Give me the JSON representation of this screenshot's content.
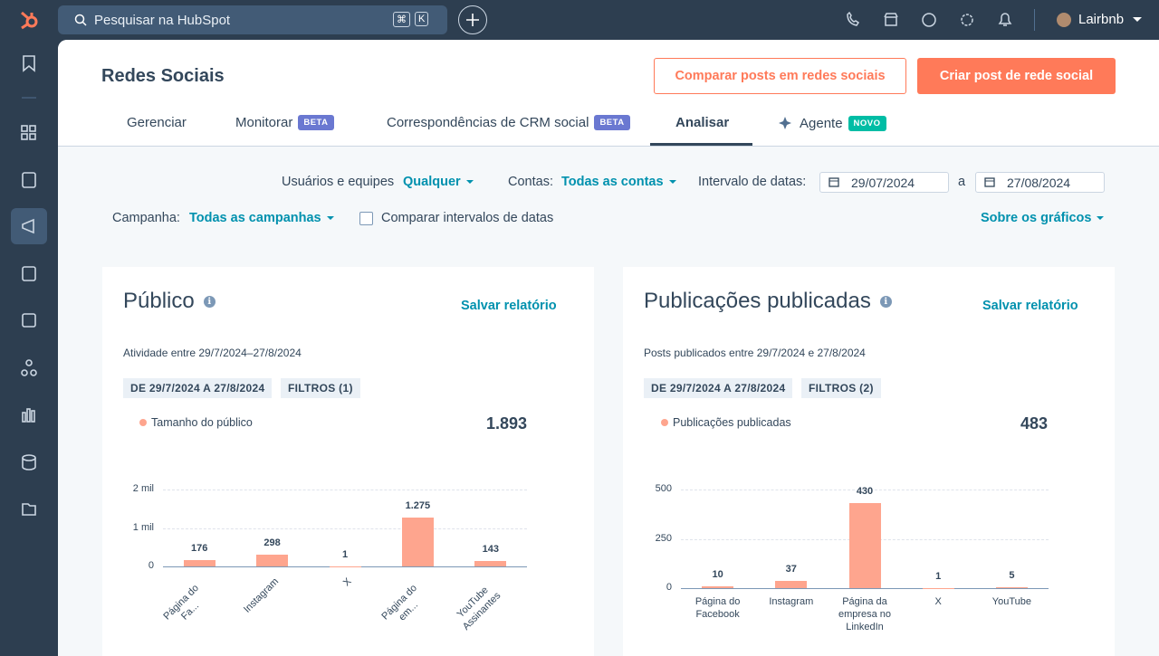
{
  "topbar": {
    "search": "Pesquisar na HubSpot",
    "shortcut": [
      "⌘",
      "K"
    ],
    "user": "Lairbnb"
  },
  "header": {
    "title": "Redes Sociais",
    "buttons": [
      "Comparar posts em redes sociais",
      "Criar post de rede social"
    ]
  },
  "tabs": [
    {
      "label": "Gerenciar"
    },
    {
      "label": "Monitorar",
      "badge": "BETA"
    },
    {
      "label": "Correspondências de CRM social",
      "badge": "BETA"
    },
    {
      "label": "Analisar",
      "active": true
    },
    {
      "label": "Agente",
      "badge": "NOVO"
    }
  ],
  "filters": {
    "users_label": "Usuários e equipes",
    "users_value": "Qualquer",
    "accounts_label": "Contas:",
    "accounts_value": "Todas as contas",
    "date_label": "Intervalo de datas:",
    "date_from": "29/07/2024",
    "date_sep": "a",
    "date_to": "27/08/2024",
    "campaign_label": "Campanha:",
    "campaign_value": "Todas as campanhas",
    "compare": "Comparar intervalos de datas",
    "about": "Sobre os gráficos"
  },
  "cards": [
    {
      "title": "Público",
      "save": "Salvar relatório",
      "subtitle": "Atividade entre 29/7/2024–27/8/2024",
      "chips": [
        "DE 29/7/2024 A 27/8/2024",
        "FILTROS (1)"
      ],
      "legend": "Tamanho do público",
      "total": "1.893",
      "chart": {
        "type": "bar",
        "color": "#fea58e",
        "categories": [
          "Página do Fa...",
          "Instagram",
          "X",
          "Página do em...",
          "YouTube Assinantes"
        ],
        "values": [
          176,
          298,
          1,
          1275,
          143
        ],
        "value_labels": [
          "176",
          "298",
          "1",
          "1.275",
          "143"
        ],
        "ylim": [
          0,
          2000
        ],
        "yticks": [
          0,
          {
            "value": 1000,
            "label": "1 mil"
          },
          {
            "value": 2000,
            "label": "2 mil"
          }
        ],
        "grid": true
      }
    },
    {
      "title": "Publicações publicadas",
      "save": "Salvar relatório",
      "subtitle": "Posts publicados entre 29/7/2024 e 27/8/2024",
      "chips": [
        "DE 29/7/2024 A 27/8/2024",
        "FILTROS (2)"
      ],
      "legend": "Publicações publicadas",
      "total": "483",
      "chart": {
        "type": "bar",
        "color": "#fea58e",
        "categories": [
          "Página do Facebook",
          "Instagram",
          "Página da empresa no LinkedIn",
          "X",
          "YouTube"
        ],
        "values": [
          10,
          37,
          430,
          1,
          5
        ],
        "ylim": [
          0,
          500
        ],
        "yticks": [
          0,
          250,
          500
        ],
        "grid": true
      }
    }
  ]
}
